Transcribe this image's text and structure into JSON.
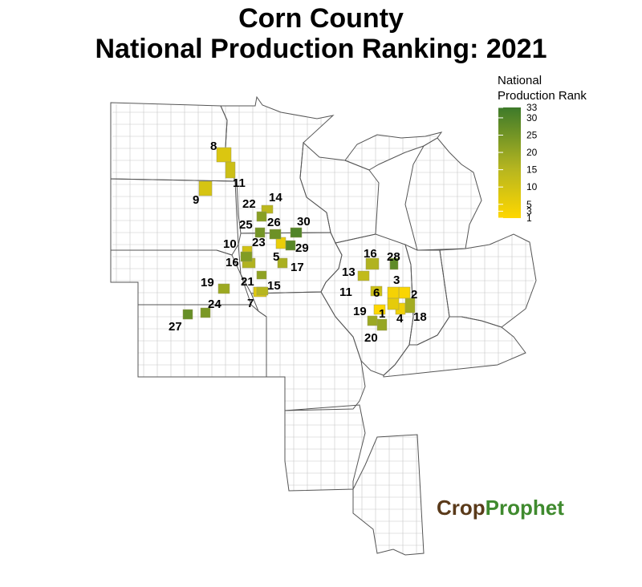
{
  "title": {
    "line1": "Corn County",
    "line2": "National Production Ranking: 2021"
  },
  "legend": {
    "title_line1": "National",
    "title_line2": "Production Rank",
    "ticks": [
      "33",
      "30",
      "25",
      "20",
      "15",
      "10",
      "5",
      "3",
      "1"
    ],
    "color_low": "#ffd700",
    "color_mid": "#b5b520",
    "color_high": "#3d7a2a"
  },
  "logo": {
    "part1": "Crop",
    "part2": "Prophet",
    "icon": "sprout-icon"
  },
  "map_data": {
    "type": "choropleth",
    "color_scale_range": [
      1,
      33
    ],
    "ranked_counties": [
      {
        "rank": 1,
        "label": "1"
      },
      {
        "rank": 2,
        "label": "2"
      },
      {
        "rank": 3,
        "label": "3"
      },
      {
        "rank": 4,
        "label": "4"
      },
      {
        "rank": 5,
        "label": "5"
      },
      {
        "rank": 6,
        "label": "6"
      },
      {
        "rank": 7,
        "label": "7"
      },
      {
        "rank": 8,
        "label": "8"
      },
      {
        "rank": 9,
        "label": "9"
      },
      {
        "rank": 10,
        "label": "10"
      },
      {
        "rank": 11,
        "label": "11"
      },
      {
        "rank": 11,
        "label": "11"
      },
      {
        "rank": 13,
        "label": "13"
      },
      {
        "rank": 14,
        "label": "14"
      },
      {
        "rank": 15,
        "label": "15"
      },
      {
        "rank": 16,
        "label": "16"
      },
      {
        "rank": 16,
        "label": "16"
      },
      {
        "rank": 17,
        "label": "17"
      },
      {
        "rank": 18,
        "label": "18"
      },
      {
        "rank": 19,
        "label": "19"
      },
      {
        "rank": 19,
        "label": "19"
      },
      {
        "rank": 20,
        "label": "20"
      },
      {
        "rank": 21,
        "label": "21"
      },
      {
        "rank": 22,
        "label": "22"
      },
      {
        "rank": 23,
        "label": "23"
      },
      {
        "rank": 24,
        "label": "24"
      },
      {
        "rank": 25,
        "label": "25"
      },
      {
        "rank": 26,
        "label": "26"
      },
      {
        "rank": 27,
        "label": "27"
      },
      {
        "rank": 28,
        "label": "28"
      },
      {
        "rank": 29,
        "label": "29"
      },
      {
        "rank": 30,
        "label": "30"
      }
    ]
  }
}
